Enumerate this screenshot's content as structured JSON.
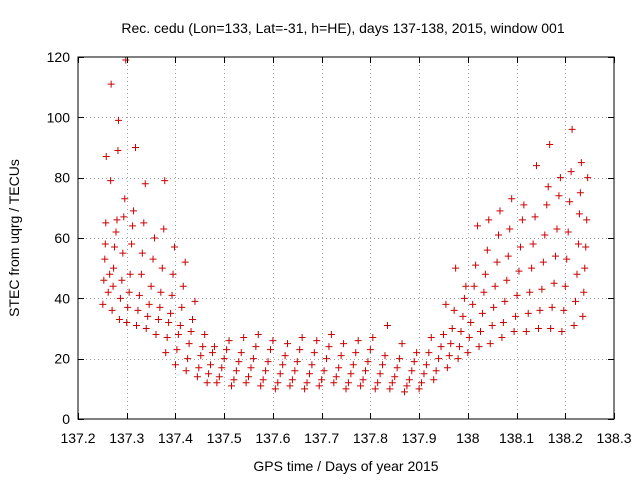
{
  "chart_data": {
    "type": "scatter",
    "title": "Rec. cedu (Lon=133, Lat=-31, h=HE), days 137-138, 2015, window 001",
    "xlabel": "GPS time / Days of year 2015",
    "ylabel": "STEC from uqrg / TECUs",
    "xlim": [
      137.2,
      138.3
    ],
    "ylim": [
      0,
      120
    ],
    "xticks": [
      137.2,
      137.3,
      137.4,
      137.5,
      137.6,
      137.7,
      137.8,
      137.9,
      138,
      138.1,
      138.2,
      138.3
    ],
    "xtick_labels": [
      "137.2",
      "137.3",
      "137.4",
      "137.5",
      "137.6",
      "137.7",
      "137.8",
      "137.9",
      "138",
      "138.1",
      "138.2",
      "138.3"
    ],
    "yticks": [
      0,
      20,
      40,
      60,
      80,
      100,
      120
    ],
    "ytick_labels": [
      "0",
      "20",
      "40",
      "60",
      "80",
      "100",
      "120"
    ],
    "grid": true,
    "marker": "+",
    "color": "#cc0000",
    "series": [
      {
        "name": "STEC",
        "points": [
          [
            137.251,
            38
          ],
          [
            137.253,
            46
          ],
          [
            137.255,
            53
          ],
          [
            137.256,
            58
          ],
          [
            137.257,
            65
          ],
          [
            137.258,
            87
          ],
          [
            137.262,
            42
          ],
          [
            137.265,
            48
          ],
          [
            137.267,
            79
          ],
          [
            137.268,
            111
          ],
          [
            137.27,
            36
          ],
          [
            137.272,
            44
          ],
          [
            137.273,
            50
          ],
          [
            137.275,
            57
          ],
          [
            137.278,
            62
          ],
          [
            137.28,
            66
          ],
          [
            137.282,
            89
          ],
          [
            137.283,
            99
          ],
          [
            137.285,
            33
          ],
          [
            137.287,
            40
          ],
          [
            137.29,
            46
          ],
          [
            137.292,
            55
          ],
          [
            137.294,
            67
          ],
          [
            137.296,
            73
          ],
          [
            137.298,
            119
          ],
          [
            137.3,
            32
          ],
          [
            137.302,
            37
          ],
          [
            137.305,
            42
          ],
          [
            137.307,
            48
          ],
          [
            137.31,
            58
          ],
          [
            137.312,
            64
          ],
          [
            137.314,
            69
          ],
          [
            137.318,
            90
          ],
          [
            137.32,
            31
          ],
          [
            137.323,
            36
          ],
          [
            137.326,
            41
          ],
          [
            137.33,
            48
          ],
          [
            137.332,
            55
          ],
          [
            137.335,
            65
          ],
          [
            137.338,
            78
          ],
          [
            137.34,
            30
          ],
          [
            137.343,
            34
          ],
          [
            137.346,
            38
          ],
          [
            137.35,
            44
          ],
          [
            137.354,
            53
          ],
          [
            137.357,
            60
          ],
          [
            137.36,
            28
          ],
          [
            137.365,
            33
          ],
          [
            137.368,
            37
          ],
          [
            137.37,
            42
          ],
          [
            137.373,
            50
          ],
          [
            137.376,
            63
          ],
          [
            137.378,
            79
          ],
          [
            137.38,
            22
          ],
          [
            137.383,
            27
          ],
          [
            137.386,
            32
          ],
          [
            137.39,
            35
          ],
          [
            137.393,
            41
          ],
          [
            137.395,
            48
          ],
          [
            137.398,
            57
          ],
          [
            137.4,
            18
          ],
          [
            137.403,
            23
          ],
          [
            137.406,
            28
          ],
          [
            137.41,
            31
          ],
          [
            137.413,
            37
          ],
          [
            137.416,
            44
          ],
          [
            137.42,
            52
          ],
          [
            137.422,
            16
          ],
          [
            137.425,
            20
          ],
          [
            137.428,
            25
          ],
          [
            137.432,
            29
          ],
          [
            137.435,
            33
          ],
          [
            137.44,
            39
          ],
          [
            137.445,
            14
          ],
          [
            137.448,
            17
          ],
          [
            137.452,
            21
          ],
          [
            137.456,
            24
          ],
          [
            137.46,
            28
          ],
          [
            137.465,
            12
          ],
          [
            137.468,
            15
          ],
          [
            137.472,
            18
          ],
          [
            137.476,
            22
          ],
          [
            137.48,
            24
          ],
          [
            137.485,
            12
          ],
          [
            137.49,
            14
          ],
          [
            137.495,
            17
          ],
          [
            137.5,
            20
          ],
          [
            137.505,
            23
          ],
          [
            137.51,
            26
          ],
          [
            137.515,
            11
          ],
          [
            137.52,
            13
          ],
          [
            137.525,
            16
          ],
          [
            137.53,
            19
          ],
          [
            137.535,
            22
          ],
          [
            137.54,
            27
          ],
          [
            137.545,
            12
          ],
          [
            137.55,
            14
          ],
          [
            137.555,
            17
          ],
          [
            137.56,
            20
          ],
          [
            137.565,
            24
          ],
          [
            137.57,
            28
          ],
          [
            137.575,
            11
          ],
          [
            137.58,
            13
          ],
          [
            137.585,
            16
          ],
          [
            137.59,
            19
          ],
          [
            137.595,
            23
          ],
          [
            137.6,
            26
          ],
          [
            137.605,
            10
          ],
          [
            137.61,
            12
          ],
          [
            137.615,
            15
          ],
          [
            137.62,
            18
          ],
          [
            137.625,
            21
          ],
          [
            137.63,
            25
          ],
          [
            137.635,
            11
          ],
          [
            137.64,
            13
          ],
          [
            137.645,
            16
          ],
          [
            137.65,
            19
          ],
          [
            137.655,
            23
          ],
          [
            137.66,
            27
          ],
          [
            137.665,
            10
          ],
          [
            137.67,
            12
          ],
          [
            137.675,
            15
          ],
          [
            137.68,
            18
          ],
          [
            137.685,
            22
          ],
          [
            137.69,
            26
          ],
          [
            137.695,
            11
          ],
          [
            137.7,
            13
          ],
          [
            137.705,
            16
          ],
          [
            137.71,
            20
          ],
          [
            137.715,
            24
          ],
          [
            137.72,
            28
          ],
          [
            137.725,
            12
          ],
          [
            137.73,
            14
          ],
          [
            137.735,
            17
          ],
          [
            137.74,
            21
          ],
          [
            137.745,
            25
          ],
          [
            137.75,
            10
          ],
          [
            137.755,
            12
          ],
          [
            137.76,
            15
          ],
          [
            137.765,
            18
          ],
          [
            137.77,
            22
          ],
          [
            137.775,
            26
          ],
          [
            137.78,
            11
          ],
          [
            137.785,
            13
          ],
          [
            137.79,
            16
          ],
          [
            137.795,
            19
          ],
          [
            137.8,
            23
          ],
          [
            137.805,
            27
          ],
          [
            137.81,
            10
          ],
          [
            137.815,
            12
          ],
          [
            137.82,
            15
          ],
          [
            137.825,
            18
          ],
          [
            137.83,
            21
          ],
          [
            137.835,
            31
          ],
          [
            137.84,
            10
          ],
          [
            137.845,
            12
          ],
          [
            137.85,
            14
          ],
          [
            137.855,
            17
          ],
          [
            137.86,
            20
          ],
          [
            137.865,
            25
          ],
          [
            137.87,
            9
          ],
          [
            137.875,
            11
          ],
          [
            137.88,
            13
          ],
          [
            137.885,
            16
          ],
          [
            137.89,
            19
          ],
          [
            137.895,
            22
          ],
          [
            137.9,
            10
          ],
          [
            137.905,
            12
          ],
          [
            137.91,
            15
          ],
          [
            137.915,
            18
          ],
          [
            137.92,
            22
          ],
          [
            137.925,
            27
          ],
          [
            137.93,
            13
          ],
          [
            137.935,
            16
          ],
          [
            137.94,
            20
          ],
          [
            137.945,
            24
          ],
          [
            137.95,
            28
          ],
          [
            137.955,
            38
          ],
          [
            137.958,
            17
          ],
          [
            137.962,
            21
          ],
          [
            137.965,
            25
          ],
          [
            137.968,
            30
          ],
          [
            137.972,
            36
          ],
          [
            137.975,
            50
          ],
          [
            137.98,
            20
          ],
          [
            137.983,
            24
          ],
          [
            137.986,
            29
          ],
          [
            137.99,
            34
          ],
          [
            137.993,
            40
          ],
          [
            137.996,
            44
          ],
          [
            138,
            22
          ],
          [
            138.003,
            27
          ],
          [
            138.006,
            32
          ],
          [
            138.01,
            38
          ],
          [
            138.013,
            44
          ],
          [
            138.016,
            51
          ],
          [
            138.02,
            64
          ],
          [
            138.023,
            24
          ],
          [
            138.026,
            29
          ],
          [
            138.03,
            35
          ],
          [
            138.033,
            42
          ],
          [
            138.036,
            48
          ],
          [
            138.04,
            56
          ],
          [
            138.043,
            66
          ],
          [
            138.046,
            25
          ],
          [
            138.05,
            31
          ],
          [
            138.053,
            37
          ],
          [
            138.056,
            44
          ],
          [
            138.06,
            52
          ],
          [
            138.063,
            61
          ],
          [
            138.066,
            69
          ],
          [
            138.07,
            27
          ],
          [
            138.073,
            32
          ],
          [
            138.076,
            39
          ],
          [
            138.08,
            46
          ],
          [
            138.083,
            54
          ],
          [
            138.086,
            63
          ],
          [
            138.09,
            73
          ],
          [
            138.095,
            29
          ],
          [
            138.098,
            34
          ],
          [
            138.101,
            41
          ],
          [
            138.105,
            49
          ],
          [
            138.108,
            57
          ],
          [
            138.112,
            66
          ],
          [
            138.115,
            71
          ],
          [
            138.12,
            29
          ],
          [
            138.124,
            35
          ],
          [
            138.127,
            42
          ],
          [
            138.131,
            50
          ],
          [
            138.134,
            58
          ],
          [
            138.138,
            67
          ],
          [
            138.141,
            84
          ],
          [
            138.145,
            30
          ],
          [
            138.148,
            36
          ],
          [
            138.152,
            43
          ],
          [
            138.155,
            52
          ],
          [
            138.158,
            61
          ],
          [
            138.162,
            71
          ],
          [
            138.165,
            77
          ],
          [
            138.168,
            91
          ],
          [
            138.17,
            30
          ],
          [
            138.173,
            37
          ],
          [
            138.177,
            45
          ],
          [
            138.18,
            54
          ],
          [
            138.183,
            63
          ],
          [
            138.187,
            74
          ],
          [
            138.19,
            80
          ],
          [
            138.193,
            29
          ],
          [
            138.197,
            36
          ],
          [
            138.2,
            44
          ],
          [
            138.203,
            53
          ],
          [
            138.206,
            62
          ],
          [
            138.209,
            72
          ],
          [
            138.212,
            82
          ],
          [
            138.214,
            96
          ],
          [
            138.218,
            31
          ],
          [
            138.221,
            39
          ],
          [
            138.224,
            48
          ],
          [
            138.227,
            58
          ],
          [
            138.229,
            68
          ],
          [
            138.231,
            75
          ],
          [
            138.233,
            85
          ],
          [
            138.236,
            34
          ],
          [
            138.238,
            42
          ],
          [
            138.24,
            50
          ],
          [
            138.242,
            57
          ],
          [
            138.244,
            66
          ],
          [
            138.246,
            80
          ]
        ]
      }
    ]
  }
}
